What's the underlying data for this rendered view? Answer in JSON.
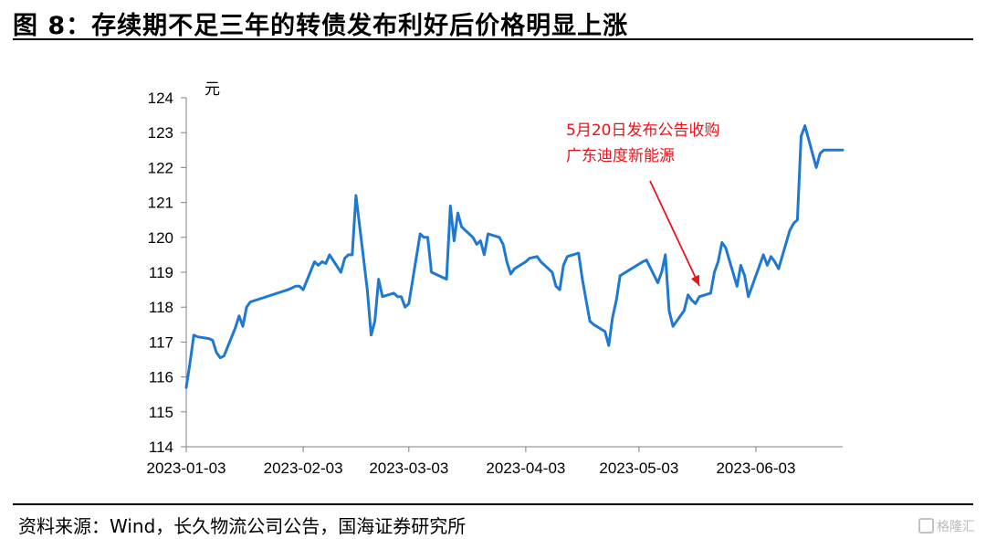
{
  "header": {
    "title": "图 8：存续期不足三年的转债发布利好后价格明显上涨"
  },
  "footer": {
    "source": "资料来源：Wind，长久物流公司公告，国海证券研究所"
  },
  "watermark": {
    "text": "格隆汇"
  },
  "chart_data": {
    "type": "line",
    "title": "图 8：存续期不足三年的转债发布利好后价格明显上涨",
    "xlabel": "",
    "ylabel": "元",
    "ylim": [
      114,
      124
    ],
    "yticks": [
      114,
      115,
      116,
      117,
      118,
      119,
      120,
      121,
      122,
      123,
      124
    ],
    "x_range": [
      "2023-01-03",
      "2023-06-26"
    ],
    "xticks": [
      "2023-01-03",
      "2023-02-03",
      "2023-03-03",
      "2023-04-03",
      "2023-05-03",
      "2023-06-03"
    ],
    "grid": false,
    "legend": "none",
    "colors": {
      "line": "#1f78d1",
      "annotation": "#e8131b"
    },
    "series": [
      {
        "color": "#1f78d1",
        "points": [
          [
            "2023-01-03",
            115.7
          ],
          [
            "2023-01-04",
            116.4
          ],
          [
            "2023-01-05",
            117.2
          ],
          [
            "2023-01-06",
            117.15
          ],
          [
            "2023-01-09",
            117.1
          ],
          [
            "2023-01-10",
            117.05
          ],
          [
            "2023-01-11",
            116.7
          ],
          [
            "2023-01-12",
            116.55
          ],
          [
            "2023-01-13",
            116.6
          ],
          [
            "2023-01-16",
            117.4
          ],
          [
            "2023-01-17",
            117.75
          ],
          [
            "2023-01-18",
            117.45
          ],
          [
            "2023-01-19",
            118.0
          ],
          [
            "2023-01-20",
            118.15
          ],
          [
            "2023-01-30",
            118.5
          ],
          [
            "2023-01-31",
            118.55
          ],
          [
            "2023-02-01",
            118.6
          ],
          [
            "2023-02-02",
            118.6
          ],
          [
            "2023-02-03",
            118.5
          ],
          [
            "2023-02-06",
            119.3
          ],
          [
            "2023-02-07",
            119.2
          ],
          [
            "2023-02-08",
            119.3
          ],
          [
            "2023-02-09",
            119.25
          ],
          [
            "2023-02-10",
            119.5
          ],
          [
            "2023-02-13",
            119.0
          ],
          [
            "2023-02-14",
            119.4
          ],
          [
            "2023-02-15",
            119.5
          ],
          [
            "2023-02-16",
            119.5
          ],
          [
            "2023-02-17",
            121.2
          ],
          [
            "2023-02-20",
            118.5
          ],
          [
            "2023-02-21",
            117.2
          ],
          [
            "2023-02-22",
            117.6
          ],
          [
            "2023-02-23",
            118.8
          ],
          [
            "2023-02-24",
            118.3
          ],
          [
            "2023-02-27",
            118.4
          ],
          [
            "2023-02-28",
            118.3
          ],
          [
            "2023-03-01",
            118.3
          ],
          [
            "2023-03-02",
            118.0
          ],
          [
            "2023-03-03",
            118.1
          ],
          [
            "2023-03-06",
            120.1
          ],
          [
            "2023-03-07",
            120.0
          ],
          [
            "2023-03-08",
            120.0
          ],
          [
            "2023-03-09",
            119.0
          ],
          [
            "2023-03-10",
            118.95
          ],
          [
            "2023-03-13",
            118.8
          ],
          [
            "2023-03-14",
            120.9
          ],
          [
            "2023-03-15",
            119.9
          ],
          [
            "2023-03-16",
            120.7
          ],
          [
            "2023-03-17",
            120.3
          ],
          [
            "2023-03-20",
            120.0
          ],
          [
            "2023-03-21",
            119.8
          ],
          [
            "2023-03-22",
            119.9
          ],
          [
            "2023-03-23",
            119.5
          ],
          [
            "2023-03-24",
            120.1
          ],
          [
            "2023-03-27",
            120.0
          ],
          [
            "2023-03-28",
            119.8
          ],
          [
            "2023-03-29",
            119.3
          ],
          [
            "2023-03-30",
            118.95
          ],
          [
            "2023-03-31",
            119.1
          ],
          [
            "2023-04-03",
            119.3
          ],
          [
            "2023-04-04",
            119.4
          ],
          [
            "2023-04-06",
            119.45
          ],
          [
            "2023-04-07",
            119.3
          ],
          [
            "2023-04-10",
            119.0
          ],
          [
            "2023-04-11",
            118.6
          ],
          [
            "2023-04-12",
            118.5
          ],
          [
            "2023-04-13",
            119.2
          ],
          [
            "2023-04-14",
            119.45
          ],
          [
            "2023-04-17",
            119.55
          ],
          [
            "2023-04-18",
            118.8
          ],
          [
            "2023-04-19",
            118.2
          ],
          [
            "2023-04-20",
            117.6
          ],
          [
            "2023-04-21",
            117.5
          ],
          [
            "2023-04-24",
            117.3
          ],
          [
            "2023-04-25",
            116.9
          ],
          [
            "2023-04-26",
            117.7
          ],
          [
            "2023-04-27",
            118.2
          ],
          [
            "2023-04-28",
            118.9
          ],
          [
            "2023-05-04",
            119.3
          ],
          [
            "2023-05-05",
            119.35
          ],
          [
            "2023-05-08",
            118.7
          ],
          [
            "2023-05-09",
            119.0
          ],
          [
            "2023-05-10",
            119.5
          ],
          [
            "2023-05-11",
            117.9
          ],
          [
            "2023-05-12",
            117.45
          ],
          [
            "2023-05-15",
            117.9
          ],
          [
            "2023-05-16",
            118.35
          ],
          [
            "2023-05-17",
            118.2
          ],
          [
            "2023-05-18",
            118.1
          ],
          [
            "2023-05-19",
            118.3
          ],
          [
            "2023-05-22",
            118.4
          ],
          [
            "2023-05-23",
            119.0
          ],
          [
            "2023-05-24",
            119.3
          ],
          [
            "2023-05-25",
            119.85
          ],
          [
            "2023-05-26",
            119.7
          ],
          [
            "2023-05-29",
            118.6
          ],
          [
            "2023-05-30",
            119.2
          ],
          [
            "2023-05-31",
            118.9
          ],
          [
            "2023-06-01",
            118.3
          ],
          [
            "2023-06-02",
            118.6
          ],
          [
            "2023-06-05",
            119.5
          ],
          [
            "2023-06-06",
            119.2
          ],
          [
            "2023-06-07",
            119.45
          ],
          [
            "2023-06-08",
            119.3
          ],
          [
            "2023-06-09",
            119.1
          ],
          [
            "2023-06-12",
            120.2
          ],
          [
            "2023-06-13",
            120.4
          ],
          [
            "2023-06-14",
            120.5
          ],
          [
            "2023-06-15",
            122.9
          ],
          [
            "2023-06-16",
            123.2
          ],
          [
            "2023-06-19",
            122.0
          ],
          [
            "2023-06-20",
            122.4
          ],
          [
            "2023-06-21",
            122.5
          ],
          [
            "2023-06-26",
            122.5
          ]
        ]
      }
    ],
    "annotations": [
      {
        "lines": [
          "5月20日发布公告收购",
          "广东迪度新能源"
        ],
        "date": "2023-05-20",
        "value": 118.4
      }
    ]
  }
}
